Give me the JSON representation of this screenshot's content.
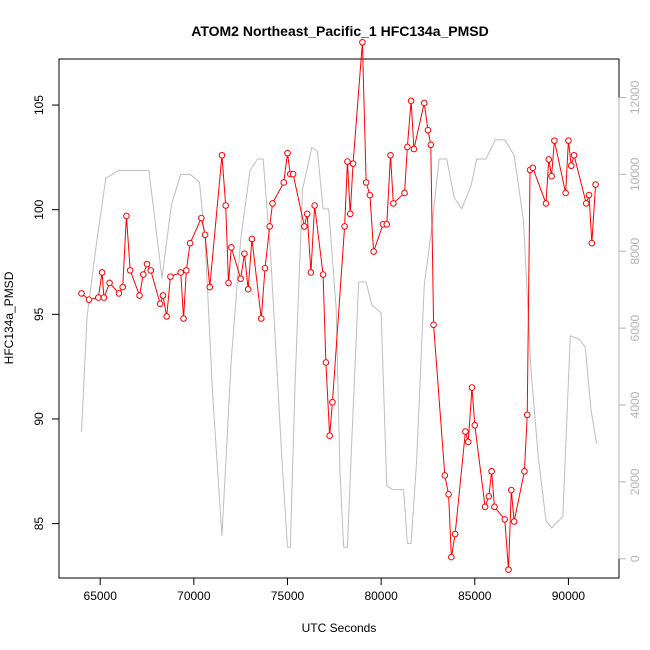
{
  "chart_data": {
    "type": "line",
    "title": "ATOM2 Northeast_Pacific_1 HFC134a_PMSD",
    "xlabel": "UTC Seconds",
    "ylabel": "HFC134a_PMSD",
    "xlim": [
      62800,
      92700
    ],
    "ylim": [
      82.4,
      107.2
    ],
    "y2lim": [
      -500,
      13000
    ],
    "xticks": [
      65000,
      70000,
      75000,
      80000,
      85000,
      90000
    ],
    "xtick_labels": [
      "65000",
      "70000",
      "75000",
      "80000",
      "85000",
      "90000"
    ],
    "yticks": [
      85,
      90,
      95,
      100,
      105
    ],
    "ytick_labels": [
      "85",
      "90",
      "95",
      "100",
      "105"
    ],
    "y2ticks": [
      0,
      2000,
      4000,
      6000,
      8000,
      10000,
      12000
    ],
    "y2tick_labels": [
      "0",
      "2000",
      "4000",
      "6000",
      "8000",
      "10000",
      "12000"
    ],
    "grid": false,
    "legend": "none",
    "series": [
      {
        "axis": "left",
        "color": "#ff0000",
        "style": "line+open-circle",
        "x": [
          64000,
          64400,
          64900,
          65100,
          65200,
          65500,
          66000,
          66200,
          66400,
          66600,
          67100,
          67300,
          67500,
          67700,
          68200,
          68350,
          68550,
          68750,
          69300,
          69450,
          69600,
          69800,
          70400,
          70600,
          70850,
          71500,
          71700,
          71850,
          72000,
          72500,
          72700,
          72900,
          73100,
          73600,
          73800,
          74050,
          74200,
          74800,
          75000,
          75150,
          75300,
          75900,
          76050,
          76250,
          76450,
          76900,
          77050,
          77250,
          77400,
          78050,
          78200,
          78350,
          78500,
          79000,
          79200,
          79400,
          79600,
          80100,
          80300,
          80500,
          80650,
          81250,
          81400,
          81600,
          81750,
          82300,
          82500,
          82650,
          82800,
          83400,
          83600,
          83750,
          83950,
          84500,
          84650,
          84850,
          85000,
          85550,
          85750,
          85900,
          86050,
          86600,
          86800,
          86950,
          87100,
          87650,
          87800,
          87950,
          88100,
          88800,
          88950,
          89100,
          89250,
          89850,
          90000,
          90150,
          90300,
          90950,
          91100,
          91250,
          91450
        ],
        "y": [
          96.0,
          95.7,
          95.8,
          97.0,
          95.8,
          96.5,
          96.0,
          96.3,
          99.7,
          97.1,
          95.9,
          96.9,
          97.4,
          97.1,
          95.5,
          95.9,
          94.9,
          96.8,
          97.0,
          94.8,
          97.1,
          98.4,
          99.6,
          98.8,
          96.3,
          102.6,
          100.2,
          96.5,
          98.2,
          96.7,
          97.9,
          96.2,
          98.6,
          94.8,
          97.2,
          99.2,
          100.3,
          101.3,
          102.7,
          101.7,
          101.7,
          99.2,
          99.8,
          97.0,
          100.2,
          96.9,
          92.7,
          89.2,
          90.8,
          99.2,
          102.3,
          99.8,
          102.2,
          108.0,
          101.3,
          100.7,
          98.0,
          99.3,
          99.3,
          102.6,
          100.3,
          100.8,
          103.0,
          105.2,
          102.9,
          105.1,
          103.8,
          103.1,
          94.5,
          87.3,
          86.4,
          83.4,
          84.5,
          89.4,
          88.9,
          91.5,
          89.7,
          85.8,
          86.3,
          87.5,
          85.8,
          85.2,
          82.8,
          86.6,
          85.1,
          87.5,
          90.2,
          101.9,
          102.0,
          100.3,
          102.4,
          101.6,
          103.3,
          100.8,
          103.3,
          102.1,
          102.6,
          100.3,
          100.7,
          98.4,
          101.2
        ]
      },
      {
        "axis": "right",
        "color": "#bebebe",
        "style": "line",
        "x": [
          64000,
          64300,
          64800,
          65300,
          66000,
          67600,
          68300,
          68800,
          69300,
          69800,
          70300,
          70600,
          71000,
          71500,
          72000,
          72500,
          73000,
          73400,
          73700,
          74100,
          74700,
          75000,
          75150,
          75400,
          75800,
          76300,
          76600,
          76900,
          77200,
          77600,
          77800,
          78000,
          78200,
          78400,
          78800,
          79200,
          79500,
          80000,
          80300,
          80600,
          81200,
          81400,
          81600,
          81900,
          82300,
          82700,
          83100,
          83500,
          83900,
          84300,
          84800,
          85100,
          85600,
          86100,
          86600,
          87100,
          87600,
          88000,
          88400,
          88800,
          89100,
          89700,
          90100,
          90600,
          90900,
          91200,
          91500
        ],
        "y": [
          3300,
          6300,
          8200,
          9900,
          10100,
          10100,
          7300,
          9200,
          10000,
          10000,
          9800,
          8300,
          4300,
          600,
          5200,
          8300,
          10100,
          10400,
          10400,
          7900,
          2600,
          300,
          300,
          4500,
          9600,
          10700,
          10600,
          9100,
          9100,
          6500,
          2300,
          300,
          300,
          2700,
          7200,
          7200,
          6600,
          6400,
          1900,
          1800,
          1800,
          400,
          400,
          2600,
          7100,
          8600,
          10400,
          10400,
          9400,
          9100,
          9700,
          10400,
          10400,
          10900,
          10900,
          10500,
          8800,
          4900,
          2600,
          1000,
          800,
          1100,
          5800,
          5700,
          5500,
          3900,
          3000
        ]
      }
    ]
  }
}
